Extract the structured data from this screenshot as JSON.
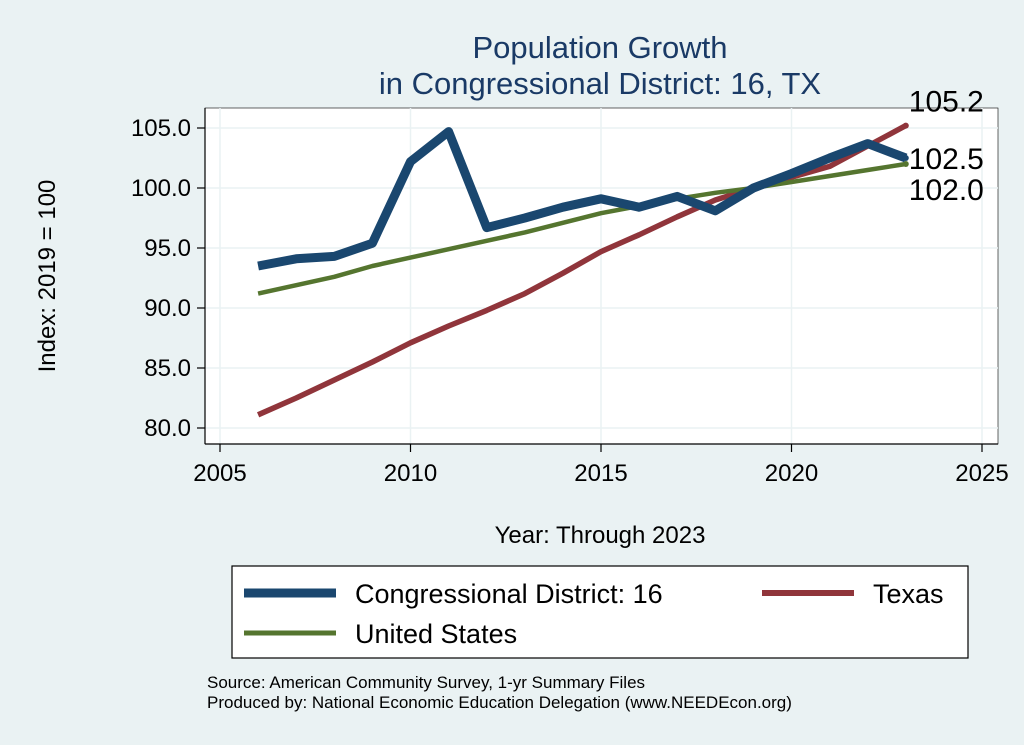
{
  "chart_data": {
    "type": "line",
    "title": "Population Growth",
    "subtitle": "in Congressional District: 16, TX",
    "xlabel": "Year: Through 2023",
    "ylabel": "Index: 2019 = 100",
    "xlim": [
      2005,
      2025
    ],
    "ylim": [
      80,
      105
    ],
    "xticks": [
      2005,
      2010,
      2015,
      2020,
      2025
    ],
    "yticks": [
      80,
      85,
      90,
      95,
      100,
      105
    ],
    "ytick_labels": [
      "80.0",
      "85.0",
      "90.0",
      "95.0",
      "100.0",
      "105.0"
    ],
    "grid": true,
    "legend_position": "bottom",
    "series": [
      {
        "name": "Congressional District: 16",
        "color": "#1a476f",
        "x": [
          2006,
          2007,
          2008,
          2009,
          2010,
          2011,
          2012,
          2013,
          2014,
          2015,
          2016,
          2017,
          2018,
          2019,
          2020,
          2021,
          2022,
          2023
        ],
        "values": [
          93.5,
          94.1,
          94.3,
          95.4,
          102.2,
          104.7,
          96.7,
          97.5,
          98.4,
          99.1,
          98.4,
          99.3,
          98.1,
          100.0,
          101.2,
          102.5,
          103.7,
          102.5
        ],
        "end_label": "102.5"
      },
      {
        "name": "Texas",
        "color": "#90353b",
        "x": [
          2006,
          2007,
          2008,
          2009,
          2010,
          2011,
          2012,
          2013,
          2014,
          2015,
          2016,
          2017,
          2018,
          2019,
          2020,
          2021,
          2022,
          2023
        ],
        "values": [
          81.1,
          82.5,
          84.0,
          85.5,
          87.1,
          88.5,
          89.8,
          91.2,
          92.9,
          94.7,
          96.1,
          97.6,
          99.0,
          100.0,
          100.9,
          101.8,
          103.5,
          105.2
        ],
        "end_label": "105.2"
      },
      {
        "name": "United States",
        "color": "#55752f",
        "x": [
          2006,
          2007,
          2008,
          2009,
          2010,
          2011,
          2012,
          2013,
          2014,
          2015,
          2016,
          2017,
          2018,
          2019,
          2020,
          2021,
          2022,
          2023
        ],
        "values": [
          91.2,
          91.9,
          92.6,
          93.5,
          94.2,
          94.9,
          95.6,
          96.3,
          97.1,
          97.9,
          98.5,
          99.1,
          99.6,
          100.0,
          100.5,
          101.0,
          101.5,
          102.0
        ],
        "end_label": "102.0"
      }
    ],
    "source_lines": [
      "Source: American Community Survey, 1-yr Summary Files",
      "Produced by: National Economic Education Delegation (www.NEEDEcon.org)"
    ]
  }
}
